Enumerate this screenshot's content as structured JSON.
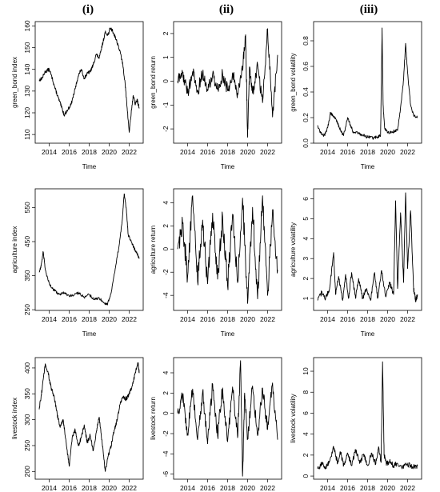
{
  "column_headers": [
    "(i)",
    "(ii)",
    "(iii)"
  ],
  "chart_data": [
    {
      "type": "line",
      "row": 0,
      "col": 0,
      "xlabel": "Time",
      "ylabel": "green_bond index",
      "xlim": [
        2012.6,
        2023.4
      ],
      "ylim": [
        106,
        162
      ],
      "xticks": [
        "2014",
        "2016",
        "2018",
        "2020",
        "2022"
      ],
      "xtick_values": [
        2014,
        2016,
        2018,
        2020,
        2022
      ],
      "yticks": [
        "110",
        "120",
        "130",
        "140",
        "150",
        "160"
      ],
      "ytick_values": [
        110,
        120,
        130,
        140,
        150,
        160
      ],
      "noise": 0.8,
      "x": [
        2013.0,
        2013.3,
        2013.6,
        2014.0,
        2014.3,
        2014.6,
        2014.9,
        2015.2,
        2015.5,
        2015.8,
        2016.2,
        2016.6,
        2016.9,
        2017.2,
        2017.5,
        2017.8,
        2018.1,
        2018.4,
        2018.7,
        2019.0,
        2019.3,
        2019.6,
        2019.9,
        2020.1,
        2020.3,
        2020.6,
        2020.9,
        2021.2,
        2021.4,
        2021.6,
        2021.8,
        2022.0,
        2022.2,
        2022.4,
        2022.6,
        2022.8,
        2023.0
      ],
      "y": [
        135,
        136,
        139,
        140,
        136,
        131,
        127,
        123,
        119,
        121,
        124,
        131,
        137,
        140,
        136,
        138,
        139,
        142,
        147,
        145,
        151,
        157,
        156,
        159,
        158,
        155,
        151,
        146,
        141,
        133,
        122,
        111,
        120,
        128,
        124,
        126,
        122
      ]
    },
    {
      "type": "line",
      "row": 0,
      "col": 1,
      "xlabel": "Time",
      "ylabel": "green_bond return",
      "xlim": [
        2012.6,
        2023.4
      ],
      "ylim": [
        -2.6,
        2.5
      ],
      "xticks": [
        "2014",
        "2016",
        "2018",
        "2020",
        "2022"
      ],
      "xtick_values": [
        2014,
        2016,
        2018,
        2020,
        2022
      ],
      "yticks": [
        "-2",
        "-1",
        "0",
        "1",
        "2"
      ],
      "ytick_values": [
        -2,
        -1,
        0,
        1,
        2
      ],
      "noise": 0.28,
      "x": [
        2013.0,
        2013.5,
        2014.0,
        2014.5,
        2015.0,
        2015.5,
        2016.0,
        2016.5,
        2017.0,
        2017.5,
        2018.0,
        2018.5,
        2019.0,
        2019.5,
        2019.8,
        2020.0,
        2020.2,
        2020.5,
        2021.0,
        2021.5,
        2022.0,
        2022.5,
        2023.0
      ],
      "y": [
        0.0,
        0.35,
        -0.5,
        0.4,
        -0.45,
        0.35,
        -0.4,
        0.3,
        -0.35,
        0.3,
        -0.4,
        0.35,
        -0.5,
        0.45,
        1.95,
        -2.35,
        0.6,
        -0.5,
        0.7,
        -0.9,
        2.2,
        -1.5,
        1.1
      ]
    },
    {
      "type": "line",
      "row": 0,
      "col": 2,
      "xlabel": "Time",
      "ylabel": "green_bond volatility",
      "xlim": [
        2012.6,
        2023.4
      ],
      "ylim": [
        0,
        0.95
      ],
      "xticks": [
        "2014",
        "2016",
        "2018",
        "2020",
        "2022"
      ],
      "xtick_values": [
        2014,
        2016,
        2018,
        2020,
        2022
      ],
      "yticks": [
        "0.0",
        "0.2",
        "0.4",
        "0.6",
        "0.8"
      ],
      "ytick_values": [
        0,
        0.2,
        0.4,
        0.6,
        0.8
      ],
      "noise": 0.012,
      "x": [
        2013.0,
        2013.3,
        2013.7,
        2014.0,
        2014.3,
        2014.7,
        2015.0,
        2015.3,
        2015.6,
        2016.0,
        2016.3,
        2016.6,
        2017.0,
        2017.5,
        2018.0,
        2018.5,
        2019.0,
        2019.3,
        2019.45,
        2019.55,
        2019.7,
        2020.0,
        2020.5,
        2021.0,
        2021.3,
        2021.6,
        2021.8,
        2022.0,
        2022.3,
        2022.6,
        2023.0
      ],
      "y": [
        0.14,
        0.08,
        0.06,
        0.12,
        0.24,
        0.2,
        0.16,
        0.1,
        0.06,
        0.2,
        0.14,
        0.08,
        0.08,
        0.06,
        0.05,
        0.04,
        0.05,
        0.06,
        0.9,
        0.3,
        0.12,
        0.08,
        0.09,
        0.1,
        0.28,
        0.5,
        0.78,
        0.55,
        0.3,
        0.22,
        0.2
      ]
    },
    {
      "type": "line",
      "row": 1,
      "col": 0,
      "xlabel": "Time",
      "ylabel": "agriculture index",
      "xlim": [
        2012.6,
        2023.4
      ],
      "ylim": [
        248,
        605
      ],
      "xticks": [
        "2014",
        "2016",
        "2018",
        "2020",
        "2022"
      ],
      "xtick_values": [
        2014,
        2016,
        2018,
        2020,
        2022
      ],
      "yticks": [
        "250",
        "350",
        "450",
        "550"
      ],
      "ytick_values": [
        250,
        350,
        450,
        550
      ],
      "noise": 4,
      "x": [
        2013.0,
        2013.2,
        2013.4,
        2013.6,
        2013.9,
        2014.2,
        2014.6,
        2015.0,
        2015.5,
        2016.0,
        2016.5,
        2017.0,
        2017.5,
        2018.0,
        2018.5,
        2019.0,
        2019.5,
        2019.8,
        2020.2,
        2020.6,
        2021.0,
        2021.3,
        2021.5,
        2021.7,
        2021.9,
        2022.2,
        2022.5,
        2022.8,
        2023.0
      ],
      "y": [
        360,
        380,
        420,
        370,
        335,
        315,
        305,
        295,
        300,
        290,
        295,
        300,
        285,
        295,
        280,
        285,
        270,
        265,
        300,
        370,
        440,
        510,
        590,
        550,
        470,
        450,
        430,
        415,
        400
      ]
    },
    {
      "type": "line",
      "row": 1,
      "col": 1,
      "xlabel": "Time",
      "ylabel": "agriculture return",
      "xlim": [
        2012.6,
        2023.4
      ],
      "ylim": [
        -5.3,
        5.2
      ],
      "xticks": [
        "2014",
        "2016",
        "2018",
        "2020",
        "2022"
      ],
      "xtick_values": [
        2014,
        2016,
        2018,
        2020,
        2022
      ],
      "yticks": [
        "-4",
        "-2",
        "0",
        "2",
        "4"
      ],
      "ytick_values": [
        -4,
        -2,
        0,
        2,
        4
      ],
      "noise": 0.9,
      "x": [
        2013.0,
        2013.5,
        2014.0,
        2014.5,
        2015.0,
        2015.5,
        2016.0,
        2016.5,
        2017.0,
        2017.5,
        2018.0,
        2018.5,
        2019.0,
        2019.5,
        2020.0,
        2020.5,
        2021.0,
        2021.5,
        2022.0,
        2022.5,
        2023.0
      ],
      "y": [
        0.0,
        2.2,
        -2.4,
        4.6,
        -2.8,
        2.5,
        -3.0,
        3.1,
        -2.6,
        2.8,
        -3.2,
        3.0,
        -2.9,
        4.4,
        -4.7,
        3.6,
        -4.3,
        4.6,
        -4.0,
        3.4,
        -1.8
      ]
    },
    {
      "type": "line",
      "row": 1,
      "col": 2,
      "xlabel": "Time",
      "ylabel": "agriculture volatility",
      "xlim": [
        2012.6,
        2023.4
      ],
      "ylim": [
        0.4,
        6.5
      ],
      "xticks": [
        "2014",
        "2016",
        "2018",
        "2020",
        "2022"
      ],
      "xtick_values": [
        2014,
        2016,
        2018,
        2020,
        2022
      ],
      "yticks": [
        "1",
        "2",
        "3",
        "4",
        "5",
        "6"
      ],
      "ytick_values": [
        1,
        2,
        3,
        4,
        5,
        6
      ],
      "noise": 0.12,
      "x": [
        2013.0,
        2013.4,
        2013.8,
        2014.2,
        2014.6,
        2014.8,
        2015.1,
        2015.5,
        2015.8,
        2016.1,
        2016.4,
        2016.8,
        2017.1,
        2017.5,
        2017.9,
        2018.3,
        2018.7,
        2019.0,
        2019.4,
        2019.8,
        2020.2,
        2020.6,
        2020.8,
        2021.0,
        2021.3,
        2021.6,
        2021.8,
        2022.0,
        2022.3,
        2022.6,
        2022.8,
        2023.0
      ],
      "y": [
        0.9,
        1.3,
        1.0,
        1.5,
        3.3,
        1.2,
        2.1,
        0.9,
        2.2,
        1.0,
        2.3,
        1.0,
        2.0,
        1.0,
        1.5,
        0.9,
        2.3,
        1.0,
        2.4,
        1.1,
        1.8,
        1.2,
        5.9,
        1.5,
        5.3,
        1.8,
        6.3,
        2.5,
        5.4,
        1.5,
        0.9,
        1.2
      ]
    },
    {
      "type": "line",
      "row": 2,
      "col": 0,
      "xlabel": "Time",
      "ylabel": "livestock index",
      "xlim": [
        2012.6,
        2023.4
      ],
      "ylim": [
        185,
        420
      ],
      "xticks": [
        "2014",
        "2016",
        "2018",
        "2020",
        "2022"
      ],
      "xtick_values": [
        2014,
        2016,
        2018,
        2020,
        2022
      ],
      "yticks": [
        "200",
        "250",
        "300",
        "350",
        "400"
      ],
      "ytick_values": [
        200,
        250,
        300,
        350,
        400
      ],
      "noise": 4,
      "x": [
        2013.0,
        2013.3,
        2013.6,
        2013.9,
        2014.2,
        2014.5,
        2014.8,
        2015.1,
        2015.4,
        2015.7,
        2016.0,
        2016.3,
        2016.6,
        2016.9,
        2017.2,
        2017.5,
        2017.8,
        2018.1,
        2018.4,
        2018.7,
        2019.0,
        2019.3,
        2019.6,
        2019.9,
        2020.2,
        2020.5,
        2020.8,
        2021.1,
        2021.4,
        2021.7,
        2022.0,
        2022.3,
        2022.6,
        2022.9,
        2023.0
      ],
      "y": [
        320,
        360,
        408,
        390,
        360,
        345,
        310,
        285,
        300,
        255,
        210,
        265,
        280,
        250,
        265,
        290,
        255,
        270,
        240,
        275,
        305,
        255,
        200,
        230,
        250,
        280,
        300,
        330,
        345,
        340,
        350,
        365,
        390,
        410,
        390
      ]
    },
    {
      "type": "line",
      "row": 2,
      "col": 1,
      "xlabel": "Time",
      "ylabel": "livestock return",
      "xlim": [
        2012.6,
        2023.4
      ],
      "ylim": [
        -6.5,
        5.5
      ],
      "xticks": [
        "2014",
        "2016",
        "2018",
        "2020",
        "2022"
      ],
      "xtick_values": [
        2014,
        2016,
        2018,
        2020,
        2022
      ],
      "yticks": [
        "-6",
        "-4",
        "-2",
        "0",
        "2",
        "4"
      ],
      "ytick_values": [
        -6,
        -4,
        -2,
        0,
        2,
        4
      ],
      "noise": 0.7,
      "x": [
        2013.0,
        2013.5,
        2014.0,
        2014.5,
        2015.0,
        2015.5,
        2016.0,
        2016.5,
        2017.0,
        2017.5,
        2018.0,
        2018.5,
        2019.0,
        2019.3,
        2019.5,
        2019.7,
        2020.0,
        2020.5,
        2021.0,
        2021.5,
        2022.0,
        2022.5,
        2023.0
      ],
      "y": [
        0.0,
        1.8,
        -2.0,
        2.4,
        -2.6,
        2.1,
        -3.0,
        2.9,
        -2.2,
        2.5,
        -2.8,
        2.6,
        -2.4,
        5.2,
        -6.2,
        2.0,
        -2.5,
        2.7,
        -2.2,
        2.5,
        -1.6,
        3.0,
        -2.6
      ]
    },
    {
      "type": "line",
      "row": 2,
      "col": 2,
      "xlabel": "Time",
      "ylabel": "livestock volatility",
      "xlim": [
        2012.6,
        2023.4
      ],
      "ylim": [
        -0.3,
        11.3
      ],
      "xticks": [
        "2014",
        "2016",
        "2018",
        "2020",
        "2022"
      ],
      "xtick_values": [
        2014,
        2016,
        2018,
        2020,
        2022
      ],
      "yticks": [
        "0",
        "2",
        "4",
        "6",
        "8",
        "10"
      ],
      "ytick_values": [
        0,
        2,
        4,
        6,
        8,
        10
      ],
      "noise": 0.25,
      "x": [
        2013.0,
        2013.4,
        2013.8,
        2014.2,
        2014.6,
        2015.0,
        2015.3,
        2015.6,
        2016.0,
        2016.4,
        2016.8,
        2017.2,
        2017.6,
        2018.0,
        2018.4,
        2018.8,
        2019.1,
        2019.35,
        2019.5,
        2019.65,
        2019.9,
        2020.2,
        2020.6,
        2021.0,
        2021.5,
        2022.0,
        2022.5,
        2023.0
      ],
      "y": [
        0.7,
        1.2,
        0.8,
        1.4,
        2.8,
        1.2,
        2.3,
        1.0,
        2.2,
        1.0,
        2.5,
        1.2,
        2.1,
        1.0,
        2.2,
        1.1,
        2.8,
        1.3,
        10.9,
        2.0,
        1.2,
        1.4,
        1.0,
        1.2,
        0.9,
        1.1,
        0.9,
        1.0
      ]
    }
  ]
}
